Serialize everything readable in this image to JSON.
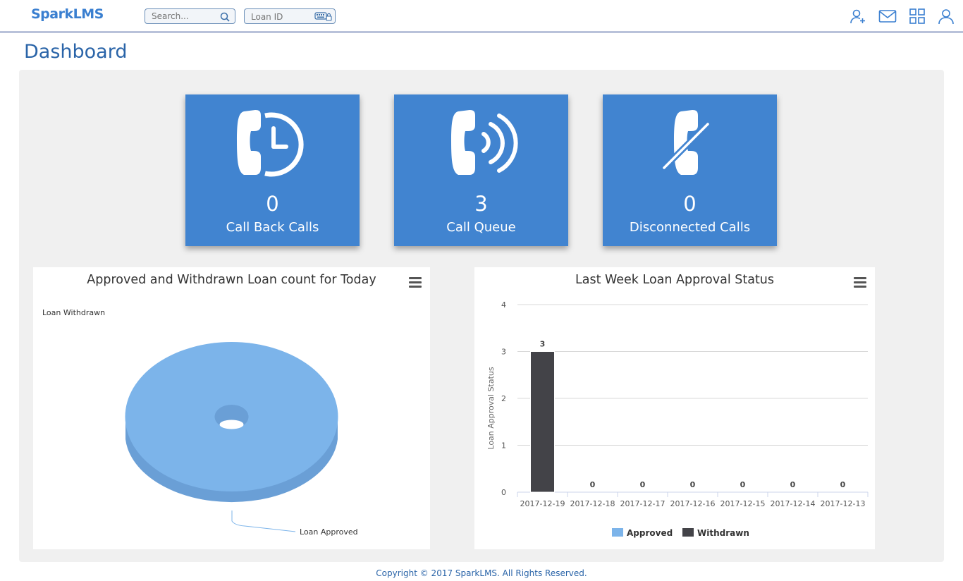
{
  "app": {
    "logo": "SparkLMS"
  },
  "header": {
    "search_placeholder": "Search...",
    "loan_placeholder": "Loan ID",
    "icons": [
      "add-user-icon",
      "mail-icon",
      "apps-grid-icon",
      "user-icon"
    ]
  },
  "page": {
    "title": "Dashboard"
  },
  "cards": [
    {
      "value": "0",
      "label": "Call Back Calls",
      "icon": "phone-clock-icon"
    },
    {
      "value": "3",
      "label": "Call Queue",
      "icon": "phone-ringing-icon"
    },
    {
      "value": "0",
      "label": "Disconnected Calls",
      "icon": "phone-disconnected-icon"
    }
  ],
  "colors": {
    "accent": "#4184d0",
    "approved": "#7cb4ea",
    "withdrawn": "#434348",
    "title": "#2a64a8"
  },
  "chart_data": [
    {
      "type": "pie",
      "title": "Approved and Withdrawn Loan count for Today",
      "slices": [
        {
          "name": "Loan Withdrawn",
          "value": 0
        },
        {
          "name": "Loan Approved",
          "value": 3
        }
      ]
    },
    {
      "type": "bar",
      "title": "Last Week Loan Approval Status",
      "ylabel": "Loan Approval Status",
      "xlabel": "",
      "ylim": [
        0,
        4
      ],
      "yticks": [
        0,
        1,
        2,
        3,
        4
      ],
      "categories": [
        "2017-12-19",
        "2017-12-18",
        "2017-12-17",
        "2017-12-16",
        "2017-12-15",
        "2017-12-14",
        "2017-12-13"
      ],
      "series": [
        {
          "name": "Approved",
          "values": [
            0,
            0,
            0,
            0,
            0,
            0,
            0
          ]
        },
        {
          "name": "Withdrawn",
          "values": [
            3,
            0,
            0,
            0,
            0,
            0,
            0
          ]
        }
      ],
      "data_labels": [
        "3",
        "0",
        "0",
        "0",
        "0",
        "0",
        "0"
      ],
      "legend": "bottom-center",
      "grid": true
    }
  ],
  "footer": {
    "copyright": "Copyright © 2017 SparkLMS. All Rights Reserved."
  }
}
